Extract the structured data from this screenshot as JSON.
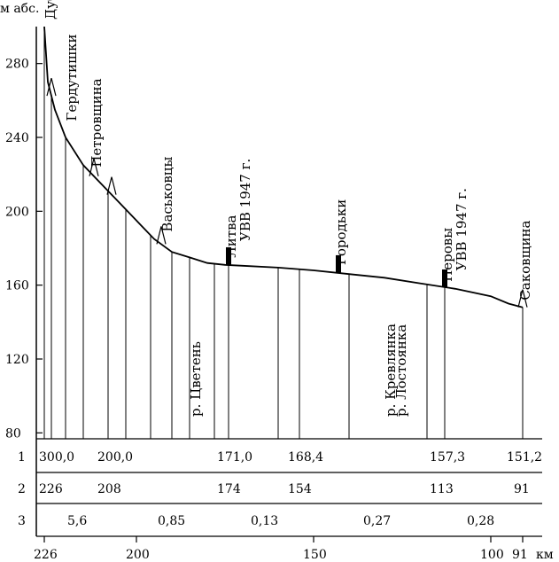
{
  "chart_data": {
    "type": "line",
    "ylabel": "м абс.",
    "xlabel": "км",
    "y_ticks": [
      80,
      120,
      160,
      200,
      240,
      280
    ],
    "x_ticks": [
      {
        "value": 226,
        "label": "226"
      },
      {
        "value": 200,
        "label": "200"
      },
      {
        "value": 150,
        "label": "150"
      },
      {
        "value": 100,
        "label": "100"
      },
      {
        "value": 91,
        "label": "91"
      }
    ],
    "ylim": [
      60,
      300
    ],
    "xlim": [
      226,
      91
    ],
    "profile": {
      "x": [
        226,
        225,
        223,
        220,
        215,
        210,
        205,
        200,
        195,
        190,
        185,
        180,
        175,
        170,
        160,
        150,
        140,
        130,
        120,
        110,
        100,
        95,
        91
      ],
      "y": [
        300,
        270,
        255,
        240,
        225,
        215,
        205,
        195,
        185,
        178,
        175,
        172,
        171,
        170.5,
        169.5,
        168,
        166,
        164,
        161,
        158,
        154,
        150,
        148
      ]
    },
    "places": [
      {
        "label": "Дуброво",
        "x": 225,
        "y": 300
      },
      {
        "label": "Гердутишки",
        "x": 219,
        "y": 245
      },
      {
        "label": "Петровщина",
        "x": 212,
        "y": 220
      },
      {
        "label": "Васьковцы",
        "x": 192,
        "y": 185
      },
      {
        "label": "Литва",
        "x": 174,
        "y": 171
      },
      {
        "label": "УВВ 1947 г.",
        "x": 174,
        "y": 180
      },
      {
        "label": "Городьки",
        "x": 143,
        "y": 167
      },
      {
        "label": "Неровы",
        "x": 113,
        "y": 158
      },
      {
        "label": "УВВ 1947 г.",
        "x": 113,
        "y": 164
      },
      {
        "label": "Саковщина",
        "x": 91,
        "y": 148
      }
    ],
    "rivers": [
      {
        "label": "р. Цветень",
        "x": 185
      },
      {
        "label": "р. Кревлянка",
        "x": 130
      },
      {
        "label": "р. Лостоянка",
        "x": 127
      }
    ],
    "table": {
      "row_labels": [
        "1",
        "2",
        "3"
      ],
      "row1": [
        "300,0",
        "200,0",
        "171,0",
        "168,4",
        "157,3",
        "151,2"
      ],
      "row2": [
        "226",
        "208",
        "174",
        "154",
        "113",
        "91"
      ],
      "row3": [
        "5,6",
        "0,85",
        "0,13",
        "0,27",
        "0,28"
      ]
    }
  }
}
